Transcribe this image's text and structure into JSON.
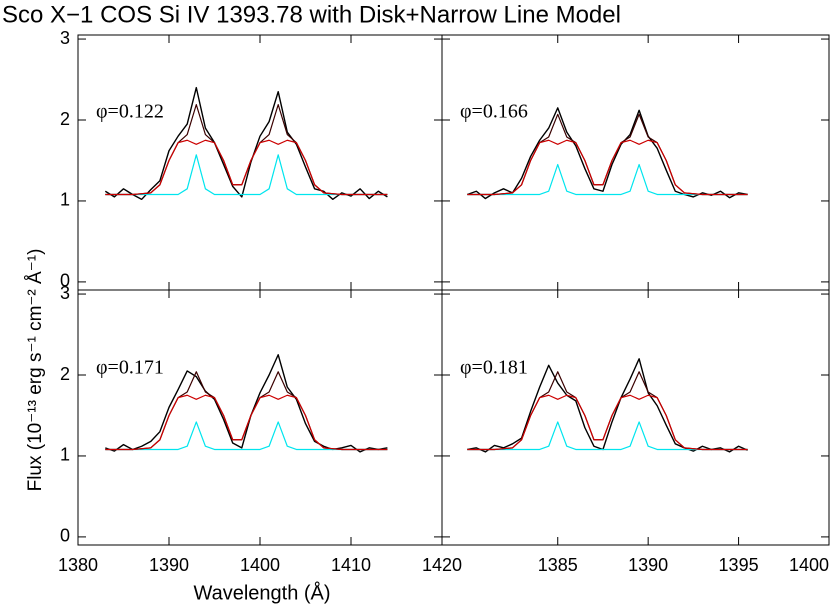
{
  "title": "Sco X−1 COS Si IV 1393.78 with Disk+Narrow Line Model",
  "xlabel": "Wavelength (Å)",
  "ylabel": "Flux (10⁻¹³ erg s⁻¹ cm⁻² Å⁻¹)",
  "chart_data": [
    {
      "type": "line",
      "annotation": "φ=0.122",
      "x": [
        1383,
        1384,
        1385,
        1386,
        1387,
        1388,
        1389,
        1390,
        1391,
        1392,
        1393,
        1394,
        1395,
        1396,
        1397,
        1398,
        1399,
        1400,
        1401,
        1402,
        1403,
        1404,
        1405,
        1406,
        1407,
        1408,
        1409,
        1410,
        1411,
        1412,
        1413,
        1414
      ],
      "xlim": [
        1380,
        1420
      ],
      "xticks": [
        1380,
        1390,
        1400,
        1410,
        1420
      ],
      "ylim": [
        -0.1,
        3.05
      ],
      "yticks": [
        0,
        1,
        2,
        3
      ],
      "series": [
        {
          "color": "#000000",
          "values": [
            1.12,
            1.05,
            1.15,
            1.08,
            1.02,
            1.14,
            1.25,
            1.62,
            1.8,
            1.95,
            2.4,
            1.9,
            1.72,
            1.45,
            1.18,
            1.05,
            1.48,
            1.8,
            1.98,
            2.35,
            1.85,
            1.7,
            1.42,
            1.15,
            1.12,
            1.02,
            1.1,
            1.06,
            1.15,
            1.03,
            1.12,
            1.05
          ]
        },
        {
          "color": "#00e5ee",
          "values": [
            1.08,
            1.08,
            1.08,
            1.08,
            1.08,
            1.08,
            1.08,
            1.08,
            1.08,
            1.15,
            1.57,
            1.15,
            1.08,
            1.08,
            1.08,
            1.08,
            1.08,
            1.08,
            1.15,
            1.57,
            1.15,
            1.08,
            1.08,
            1.08,
            1.08,
            1.08,
            1.08,
            1.08,
            1.08,
            1.08,
            1.08,
            1.08
          ]
        },
        {
          "color": "#3a0000",
          "values": [
            1.08,
            1.08,
            1.08,
            1.08,
            1.09,
            1.1,
            1.2,
            1.5,
            1.72,
            1.82,
            2.19,
            1.82,
            1.72,
            1.5,
            1.2,
            1.2,
            1.5,
            1.72,
            1.82,
            2.19,
            1.82,
            1.72,
            1.5,
            1.2,
            1.1,
            1.09,
            1.08,
            1.08,
            1.08,
            1.08,
            1.08,
            1.08
          ]
        },
        {
          "color": "#cc0000",
          "values": [
            1.08,
            1.08,
            1.08,
            1.08,
            1.09,
            1.1,
            1.2,
            1.5,
            1.72,
            1.75,
            1.7,
            1.75,
            1.72,
            1.5,
            1.2,
            1.2,
            1.5,
            1.72,
            1.75,
            1.7,
            1.75,
            1.72,
            1.5,
            1.2,
            1.1,
            1.09,
            1.08,
            1.08,
            1.08,
            1.08,
            1.08,
            1.08
          ]
        }
      ]
    },
    {
      "type": "line",
      "annotation": "φ=0.166",
      "x": [
        1380,
        1380.5,
        1381,
        1381.5,
        1382,
        1382.5,
        1383,
        1383.5,
        1384,
        1384.5,
        1385,
        1385.5,
        1386,
        1386.5,
        1387,
        1387.5,
        1388,
        1388.5,
        1389,
        1389.5,
        1390,
        1390.5,
        1391,
        1391.5,
        1392,
        1392.5,
        1393,
        1393.5,
        1394,
        1394.5,
        1395,
        1395.5
      ],
      "xlim": [
        1378.6,
        1400
      ],
      "xticks": [
        1385,
        1390,
        1395,
        1400
      ],
      "ylim": [
        -0.1,
        3.05
      ],
      "yticks": [
        0,
        1,
        2,
        3
      ],
      "series": [
        {
          "color": "#000000",
          "values": [
            1.08,
            1.12,
            1.03,
            1.1,
            1.15,
            1.1,
            1.28,
            1.55,
            1.75,
            1.9,
            2.15,
            1.85,
            1.68,
            1.4,
            1.15,
            1.12,
            1.45,
            1.7,
            1.82,
            2.12,
            1.8,
            1.65,
            1.38,
            1.12,
            1.08,
            1.05,
            1.1,
            1.07,
            1.12,
            1.04,
            1.1,
            1.08
          ]
        },
        {
          "color": "#00e5ee",
          "values": [
            1.08,
            1.08,
            1.08,
            1.08,
            1.08,
            1.08,
            1.08,
            1.08,
            1.08,
            1.12,
            1.45,
            1.12,
            1.08,
            1.08,
            1.08,
            1.08,
            1.08,
            1.08,
            1.12,
            1.45,
            1.12,
            1.08,
            1.08,
            1.08,
            1.08,
            1.08,
            1.08,
            1.08,
            1.08,
            1.08,
            1.08,
            1.08
          ]
        },
        {
          "color": "#3a0000",
          "values": [
            1.08,
            1.08,
            1.08,
            1.08,
            1.09,
            1.1,
            1.2,
            1.5,
            1.72,
            1.79,
            2.07,
            1.79,
            1.72,
            1.5,
            1.2,
            1.2,
            1.5,
            1.72,
            1.79,
            2.07,
            1.79,
            1.72,
            1.5,
            1.2,
            1.1,
            1.09,
            1.08,
            1.08,
            1.08,
            1.08,
            1.08,
            1.08
          ]
        },
        {
          "color": "#cc0000",
          "values": [
            1.08,
            1.08,
            1.08,
            1.08,
            1.09,
            1.1,
            1.2,
            1.5,
            1.72,
            1.75,
            1.7,
            1.75,
            1.72,
            1.5,
            1.2,
            1.2,
            1.5,
            1.72,
            1.75,
            1.7,
            1.75,
            1.72,
            1.5,
            1.2,
            1.1,
            1.09,
            1.08,
            1.08,
            1.08,
            1.08,
            1.08,
            1.08
          ]
        }
      ]
    },
    {
      "type": "line",
      "annotation": "φ=0.171",
      "x": [
        1383,
        1384,
        1385,
        1386,
        1387,
        1388,
        1389,
        1390,
        1391,
        1392,
        1393,
        1394,
        1395,
        1396,
        1397,
        1398,
        1399,
        1400,
        1401,
        1402,
        1403,
        1404,
        1405,
        1406,
        1407,
        1408,
        1409,
        1410,
        1411,
        1412,
        1413,
        1414
      ],
      "xlim": [
        1380,
        1420
      ],
      "xticks": [
        1380,
        1390,
        1400,
        1410,
        1420
      ],
      "ylim": [
        -0.1,
        3.05
      ],
      "yticks": [
        0,
        1,
        2,
        3
      ],
      "series": [
        {
          "color": "#000000",
          "values": [
            1.1,
            1.06,
            1.14,
            1.08,
            1.12,
            1.18,
            1.3,
            1.6,
            1.82,
            2.05,
            1.98,
            1.8,
            1.7,
            1.45,
            1.16,
            1.1,
            1.5,
            1.78,
            2.0,
            2.25,
            1.85,
            1.7,
            1.4,
            1.18,
            1.12,
            1.08,
            1.1,
            1.13,
            1.05,
            1.1,
            1.08,
            1.1
          ]
        },
        {
          "color": "#00e5ee",
          "values": [
            1.08,
            1.08,
            1.08,
            1.08,
            1.08,
            1.08,
            1.08,
            1.08,
            1.08,
            1.12,
            1.42,
            1.12,
            1.08,
            1.08,
            1.08,
            1.08,
            1.08,
            1.08,
            1.12,
            1.42,
            1.12,
            1.08,
            1.08,
            1.08,
            1.08,
            1.08,
            1.08,
            1.08,
            1.08,
            1.08,
            1.08,
            1.08
          ]
        },
        {
          "color": "#3a0000",
          "values": [
            1.08,
            1.08,
            1.08,
            1.08,
            1.09,
            1.1,
            1.2,
            1.5,
            1.72,
            1.79,
            2.04,
            1.79,
            1.72,
            1.5,
            1.2,
            1.2,
            1.5,
            1.72,
            1.79,
            2.04,
            1.79,
            1.72,
            1.5,
            1.2,
            1.1,
            1.09,
            1.08,
            1.08,
            1.08,
            1.08,
            1.08,
            1.08
          ]
        },
        {
          "color": "#cc0000",
          "values": [
            1.08,
            1.08,
            1.08,
            1.08,
            1.09,
            1.1,
            1.2,
            1.5,
            1.72,
            1.75,
            1.7,
            1.75,
            1.72,
            1.5,
            1.2,
            1.2,
            1.5,
            1.72,
            1.75,
            1.7,
            1.75,
            1.72,
            1.5,
            1.2,
            1.1,
            1.09,
            1.08,
            1.08,
            1.08,
            1.08,
            1.08,
            1.08
          ]
        }
      ]
    },
    {
      "type": "line",
      "annotation": "φ=0.181",
      "x": [
        1380,
        1380.5,
        1381,
        1381.5,
        1382,
        1382.5,
        1383,
        1383.5,
        1384,
        1384.5,
        1385,
        1385.5,
        1386,
        1386.5,
        1387,
        1387.5,
        1388,
        1388.5,
        1389,
        1389.5,
        1390,
        1390.5,
        1391,
        1391.5,
        1392,
        1392.5,
        1393,
        1393.5,
        1394,
        1394.5,
        1395,
        1395.5
      ],
      "xlim": [
        1378.6,
        1400
      ],
      "xticks": [
        1385,
        1390,
        1395,
        1400
      ],
      "ylim": [
        -0.1,
        3.05
      ],
      "yticks": [
        0,
        1,
        2,
        3
      ],
      "series": [
        {
          "color": "#000000",
          "values": [
            1.08,
            1.1,
            1.05,
            1.13,
            1.1,
            1.15,
            1.22,
            1.55,
            1.85,
            2.12,
            1.9,
            1.75,
            1.68,
            1.35,
            1.12,
            1.08,
            1.42,
            1.72,
            1.95,
            2.2,
            1.78,
            1.62,
            1.38,
            1.15,
            1.1,
            1.06,
            1.12,
            1.08,
            1.1,
            1.05,
            1.12,
            1.07
          ]
        },
        {
          "color": "#00e5ee",
          "values": [
            1.08,
            1.08,
            1.08,
            1.08,
            1.08,
            1.08,
            1.08,
            1.08,
            1.08,
            1.12,
            1.42,
            1.12,
            1.08,
            1.08,
            1.08,
            1.08,
            1.08,
            1.08,
            1.12,
            1.42,
            1.12,
            1.08,
            1.08,
            1.08,
            1.08,
            1.08,
            1.08,
            1.08,
            1.08,
            1.08,
            1.08,
            1.08
          ]
        },
        {
          "color": "#3a0000",
          "values": [
            1.08,
            1.08,
            1.08,
            1.08,
            1.09,
            1.1,
            1.2,
            1.5,
            1.72,
            1.79,
            2.04,
            1.79,
            1.72,
            1.5,
            1.2,
            1.2,
            1.5,
            1.72,
            1.79,
            2.04,
            1.79,
            1.72,
            1.5,
            1.2,
            1.1,
            1.09,
            1.08,
            1.08,
            1.08,
            1.08,
            1.08,
            1.08
          ]
        },
        {
          "color": "#cc0000",
          "values": [
            1.08,
            1.08,
            1.08,
            1.08,
            1.09,
            1.1,
            1.2,
            1.5,
            1.72,
            1.75,
            1.7,
            1.75,
            1.72,
            1.5,
            1.2,
            1.2,
            1.5,
            1.72,
            1.75,
            1.7,
            1.75,
            1.72,
            1.5,
            1.2,
            1.1,
            1.09,
            1.08,
            1.08,
            1.08,
            1.08,
            1.08,
            1.08
          ]
        }
      ]
    }
  ]
}
